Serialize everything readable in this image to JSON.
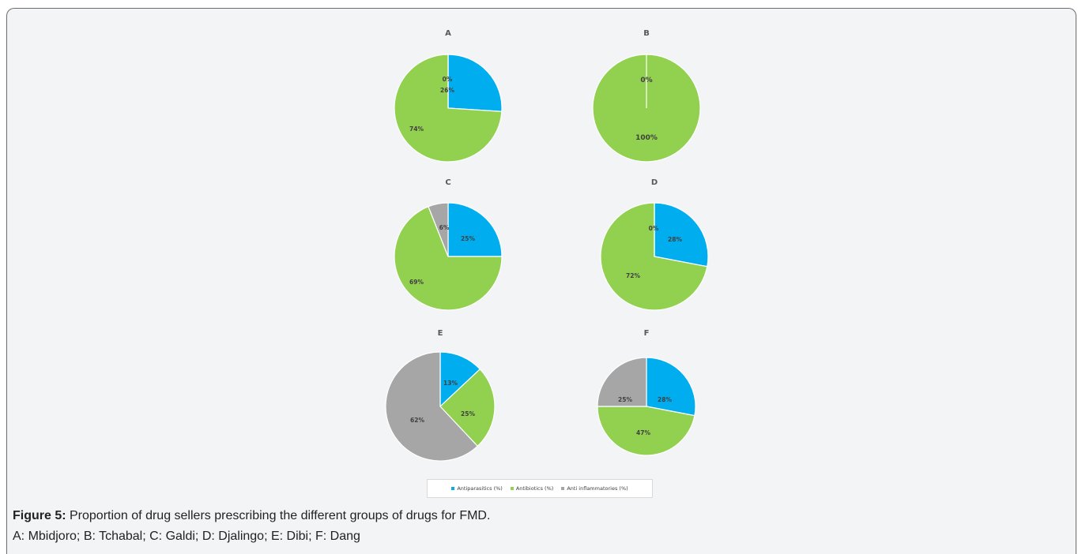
{
  "colors": {
    "antiparasitics": "#00aeef",
    "antibiotics": "#92d050",
    "anti_inflammatories": "#a6a6a6"
  },
  "legend": [
    "Antiparasitics (%)",
    "Antibiotics (%)",
    "Anti inflammatories (%)"
  ],
  "caption": {
    "label": "Figure 5:",
    "text": " Proportion of drug sellers prescribing the different groups of drugs for FMD.",
    "subtext": "A: Mbidjoro; B: Tchabal; C: Galdi; D: Djalingo; E: Dibi; F: Dang"
  },
  "chart_data": [
    {
      "type": "pie",
      "title": "A",
      "categories": [
        "Antiparasitics (%)",
        "Antibiotics (%)",
        "Anti inflammatories (%)"
      ],
      "values": [
        26,
        74,
        0
      ],
      "labels": [
        "26%",
        "74%",
        "0%"
      ]
    },
    {
      "type": "pie",
      "title": "B",
      "categories": [
        "Antiparasitics (%)",
        "Antibiotics (%)",
        "Anti inflammatories (%)"
      ],
      "values": [
        0,
        100,
        0
      ],
      "labels": [
        "",
        "100%",
        "0%"
      ]
    },
    {
      "type": "pie",
      "title": "C",
      "categories": [
        "Antiparasitics (%)",
        "Antibiotics (%)",
        "Anti inflammatories (%)"
      ],
      "values": [
        25,
        69,
        6
      ],
      "labels": [
        "25%",
        "69%",
        "6%"
      ]
    },
    {
      "type": "pie",
      "title": "D",
      "categories": [
        "Antiparasitics (%)",
        "Antibiotics (%)",
        "Anti inflammatories (%)"
      ],
      "values": [
        28,
        72,
        0
      ],
      "labels": [
        "28%",
        "72%",
        "0%"
      ]
    },
    {
      "type": "pie",
      "title": "E",
      "categories": [
        "Antiparasitics (%)",
        "Antibiotics (%)",
        "Anti inflammatories (%)"
      ],
      "values": [
        13,
        25,
        62
      ],
      "labels": [
        "13%",
        "25%",
        "62%"
      ]
    },
    {
      "type": "pie",
      "title": "F",
      "categories": [
        "Antiparasitics (%)",
        "Antibiotics (%)",
        "Anti inflammatories (%)"
      ],
      "values": [
        28,
        47,
        25
      ],
      "labels": [
        "28%",
        "47%",
        "25%"
      ]
    }
  ]
}
